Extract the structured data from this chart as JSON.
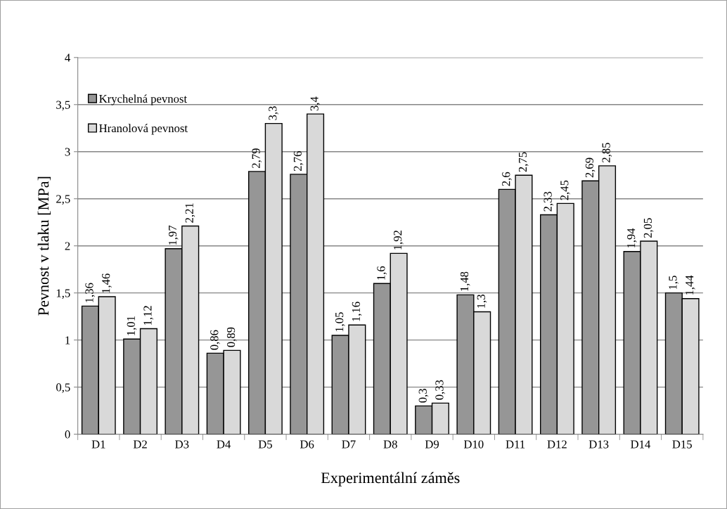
{
  "chart_data": {
    "type": "bar",
    "xlabel": "Experimentální záměs",
    "ylabel": "Pevnost v tlaku [MPa]",
    "categories": [
      "D1",
      "D2",
      "D3",
      "D4",
      "D5",
      "D6",
      "D7",
      "D8",
      "D9",
      "D10",
      "D11",
      "D12",
      "D13",
      "D14",
      "D15"
    ],
    "series": [
      {
        "name": "Krychelná pevnost",
        "color": "#969696",
        "values": [
          1.36,
          1.01,
          1.97,
          0.86,
          2.79,
          2.76,
          1.05,
          1.6,
          0.3,
          1.48,
          2.6,
          2.33,
          2.69,
          1.94,
          1.5
        ],
        "value_labels": [
          "1,36",
          "1,01",
          "1,97",
          "0,86",
          "2,79",
          "2,76",
          "1,05",
          "1,6",
          "0,3",
          "1,48",
          "2,6",
          "2,33",
          "2,69",
          "1,94",
          "1,5"
        ]
      },
      {
        "name": "Hranolová pevnost",
        "color": "#d9d9d9",
        "values": [
          1.46,
          1.12,
          2.21,
          0.89,
          3.3,
          3.4,
          1.16,
          1.92,
          0.33,
          1.3,
          2.75,
          2.45,
          2.85,
          2.05,
          1.44
        ],
        "value_labels": [
          "1,46",
          "1,12",
          "2,21",
          "0,89",
          "3,3",
          "3,4",
          "1,16",
          "1,92",
          "0,33",
          "1,3",
          "2,75",
          "2,45",
          "2,85",
          "2,05",
          "1,44"
        ]
      }
    ],
    "ylim": [
      0,
      4
    ],
    "yticks": [
      0,
      {
        "value": 0.5,
        "label": "0,5"
      },
      1,
      {
        "value": 1.5,
        "label": "1,5"
      },
      2,
      {
        "value": 2.5,
        "label": "2,5"
      },
      3,
      {
        "value": 3.5,
        "label": "3,5"
      },
      4
    ],
    "grid": "y",
    "legend": "top left"
  }
}
